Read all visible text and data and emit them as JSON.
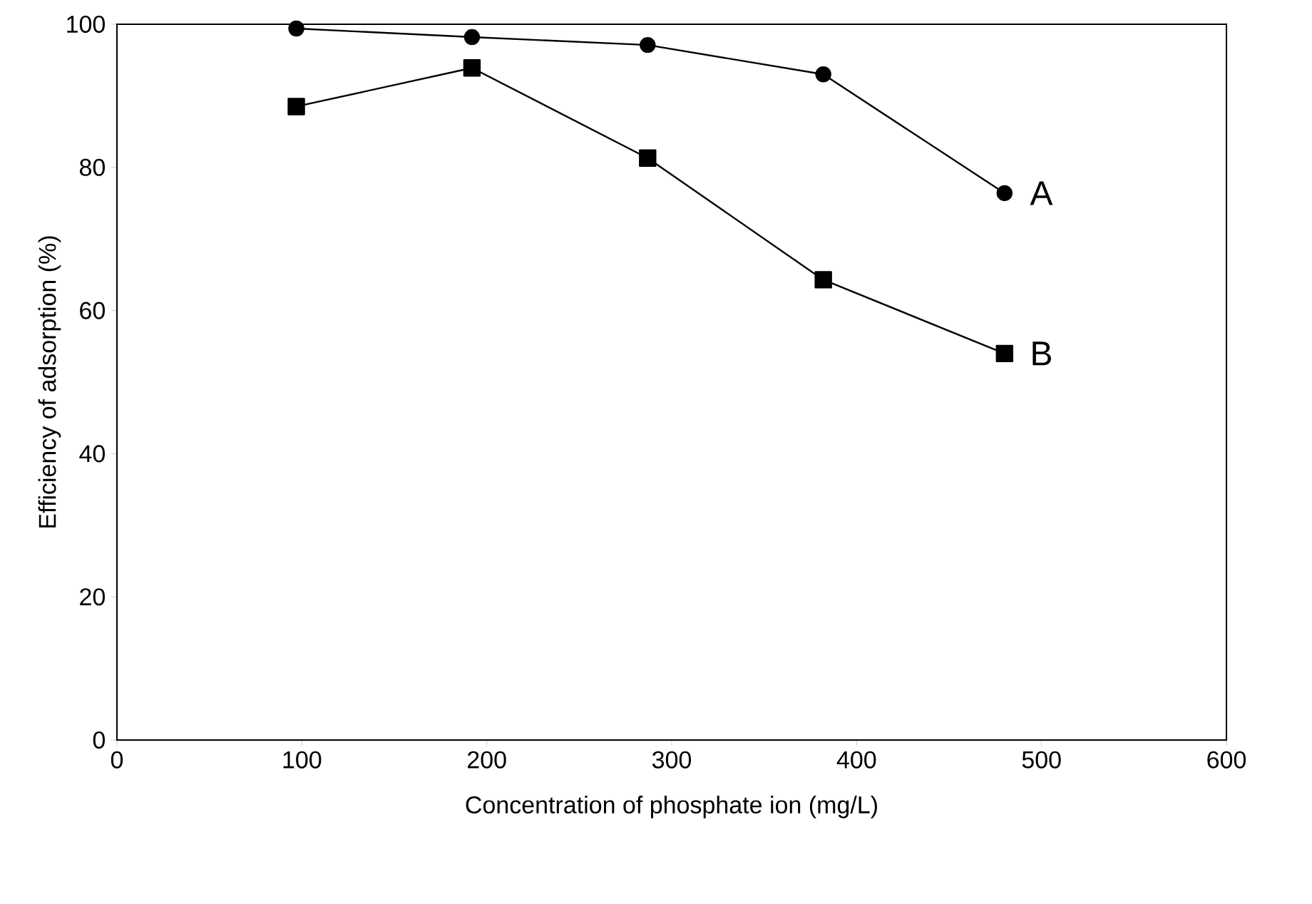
{
  "chart_data": {
    "type": "line",
    "xlabel": "Concentration of phosphate ion (mg/L)",
    "ylabel": "Efficiency of adsorption (%)",
    "x": [
      97,
      192,
      287,
      382,
      480
    ],
    "series": [
      {
        "name": "A",
        "color": "#000000",
        "marker": "circle",
        "values": [
          99.4,
          98.2,
          97.1,
          93.0,
          76.4
        ]
      },
      {
        "name": "B",
        "color": "#000000",
        "marker": "square",
        "values": [
          88.5,
          93.9,
          81.3,
          64.3,
          54.0
        ]
      }
    ],
    "xlim": [
      0,
      600
    ],
    "ylim": [
      0,
      100
    ],
    "xticks": [
      0,
      100,
      200,
      300,
      400,
      500,
      600
    ],
    "yticks": [
      0,
      20,
      40,
      60,
      80,
      100
    ],
    "grid": false,
    "legend": false,
    "line_style": "solid"
  }
}
